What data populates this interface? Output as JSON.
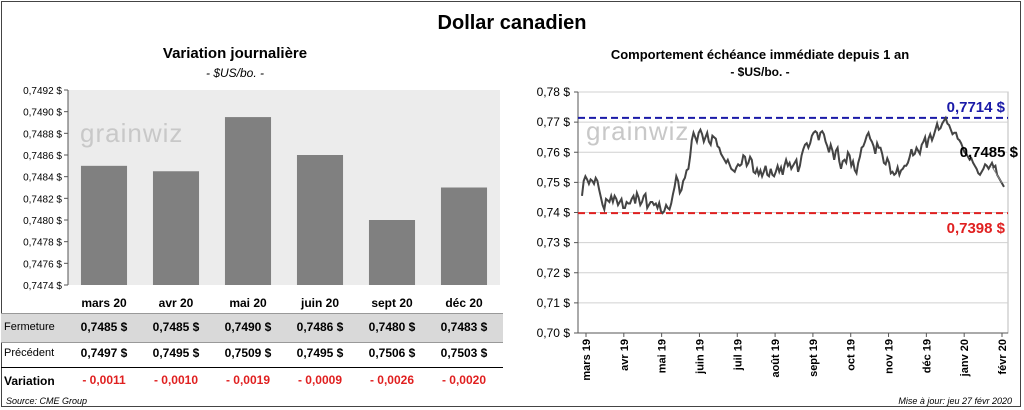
{
  "title": "Dollar canadien",
  "footer": {
    "source": "Source: CME Group",
    "updated": "Mise à jour: jeu 27 févr 2020"
  },
  "watermark": "grainwiz",
  "chart_data": [
    {
      "type": "bar",
      "title": "Variation  journalière",
      "subtitle": "- $US/bo. -",
      "categories": [
        "mars 20",
        "avr 20",
        "mai 20",
        "juin 20",
        "sept 20",
        "déc 20"
      ],
      "values": [
        0.7485,
        0.74845,
        0.74895,
        0.7486,
        0.748,
        0.7483
      ],
      "ylim": [
        0.7474,
        0.7492
      ],
      "yticks": [
        "0,7474 $",
        "0,7476 $",
        "0,7478 $",
        "0,7480 $",
        "0,7482 $",
        "0,7484 $",
        "0,7486 $",
        "0,7488 $",
        "0,7490 $",
        "0,7492 $"
      ],
      "bar_color": "#808080",
      "table": {
        "rows": [
          {
            "label": "Fermeture",
            "values": [
              "0,7485  $",
              "0,7485  $",
              "0,7490  $",
              "0,7486  $",
              "0,7480  $",
              "0,7483  $"
            ]
          },
          {
            "label": "Précédent",
            "values": [
              "0,7497  $",
              "0,7495  $",
              "0,7509  $",
              "0,7495  $",
              "0,7506  $",
              "0,7503  $"
            ]
          },
          {
            "label": "Variation",
            "values": [
              "- 0,0011",
              "- 0,0010",
              "- 0,0019",
              "- 0,0009",
              "- 0,0026",
              "- 0,0020"
            ]
          }
        ]
      }
    },
    {
      "type": "line",
      "title": "Comportement échéance immédiate depuis 1 an",
      "subtitle": "- $US/bo. -",
      "ylim": [
        0.7,
        0.78
      ],
      "yticks": [
        "0,70 $",
        "0,71 $",
        "0,72 $",
        "0,73 $",
        "0,74 $",
        "0,75 $",
        "0,76 $",
        "0,77 $",
        "0,78 $"
      ],
      "xticks": [
        "mars 19",
        "avr 19",
        "mai 19",
        "juin 19",
        "juil 19",
        "août 19",
        "sept 19",
        "oct 19",
        "nov 19",
        "déc 19",
        "janv 20",
        "févr 20"
      ],
      "line_color": "#444444",
      "reference_lines": [
        {
          "value": 0.7714,
          "label": "0,7714 $",
          "color": "#1a1aa8"
        },
        {
          "value": 0.7398,
          "label": "0,7398 $",
          "color": "#e02020"
        }
      ],
      "last_value_label": "0,7485 $",
      "series_values": [
        0.7455,
        0.7505,
        0.752,
        0.751,
        0.7495,
        0.751,
        0.7505,
        0.7495,
        0.7515,
        0.7505,
        0.7475,
        0.745,
        0.7425,
        0.741,
        0.7445,
        0.744,
        0.7435,
        0.7455,
        0.7435,
        0.7455,
        0.7445,
        0.7425,
        0.7435,
        0.7445,
        0.7415,
        0.7415,
        0.7435,
        0.743,
        0.743,
        0.7445,
        0.7455,
        0.743,
        0.7465,
        0.745,
        0.7425,
        0.7435,
        0.7455,
        0.7462,
        0.7415,
        0.7425,
        0.7435,
        0.7435,
        0.7425,
        0.743,
        0.7415,
        0.7432,
        0.7405,
        0.7398,
        0.7405,
        0.7425,
        0.7415,
        0.741,
        0.743,
        0.746,
        0.7485,
        0.752,
        0.7505,
        0.7465,
        0.7475,
        0.7505,
        0.7515,
        0.754,
        0.7545,
        0.7585,
        0.764,
        0.7665,
        0.765,
        0.7635,
        0.7665,
        0.7675,
        0.766,
        0.7635,
        0.765,
        0.7665,
        0.7635,
        0.7625,
        0.7655,
        0.765,
        0.7645,
        0.762,
        0.7615,
        0.7595,
        0.7585,
        0.7575,
        0.7565,
        0.7575,
        0.756,
        0.7545,
        0.754,
        0.7535,
        0.755,
        0.756,
        0.7555,
        0.756,
        0.759,
        0.7585,
        0.7555,
        0.7565,
        0.7585,
        0.7575,
        0.7535,
        0.753,
        0.7545,
        0.7525,
        0.754,
        0.752,
        0.7535,
        0.7555,
        0.7525,
        0.752,
        0.7545,
        0.7525,
        0.752,
        0.7535,
        0.7555,
        0.7535,
        0.755,
        0.7525,
        0.7555,
        0.7575,
        0.7555,
        0.7565,
        0.7545,
        0.7555,
        0.7565,
        0.7575,
        0.7535,
        0.7555,
        0.759,
        0.761,
        0.7625,
        0.763,
        0.7615,
        0.763,
        0.7655,
        0.7665,
        0.767,
        0.7665,
        0.764,
        0.7665,
        0.767,
        0.766,
        0.7635,
        0.762,
        0.76,
        0.7625,
        0.7605,
        0.7575,
        0.7605,
        0.7615,
        0.757,
        0.7545,
        0.757,
        0.7575,
        0.7565,
        0.76,
        0.759,
        0.7555,
        0.757,
        0.754,
        0.753,
        0.7565,
        0.7585,
        0.7615,
        0.762,
        0.7635,
        0.7655,
        0.7665,
        0.7645,
        0.7635,
        0.762,
        0.7595,
        0.763,
        0.7615,
        0.7615,
        0.7595,
        0.7565,
        0.756,
        0.758,
        0.7565,
        0.753,
        0.7535,
        0.7525,
        0.753,
        0.755,
        0.7525,
        0.754,
        0.7545,
        0.7555,
        0.7555,
        0.7565,
        0.7585,
        0.761,
        0.759,
        0.7595,
        0.7615,
        0.7605,
        0.7595,
        0.7625,
        0.7635,
        0.765,
        0.7615,
        0.7645,
        0.766,
        0.764,
        0.7655,
        0.7675,
        0.7695,
        0.7675,
        0.768,
        0.7695,
        0.7705,
        0.7714,
        0.7695,
        0.769,
        0.7675,
        0.766,
        0.7665,
        0.7665,
        0.7645,
        0.764,
        0.763,
        0.7615,
        0.76,
        0.7595,
        0.7585,
        0.7575,
        0.758,
        0.7565,
        0.7555,
        0.7545,
        0.753,
        0.7525,
        0.7535,
        0.7545,
        0.756,
        0.7555,
        0.7545,
        0.7555,
        0.7565,
        0.755,
        0.7555,
        0.7525,
        0.7515,
        0.7505,
        0.7495,
        0.7485
      ]
    }
  ]
}
